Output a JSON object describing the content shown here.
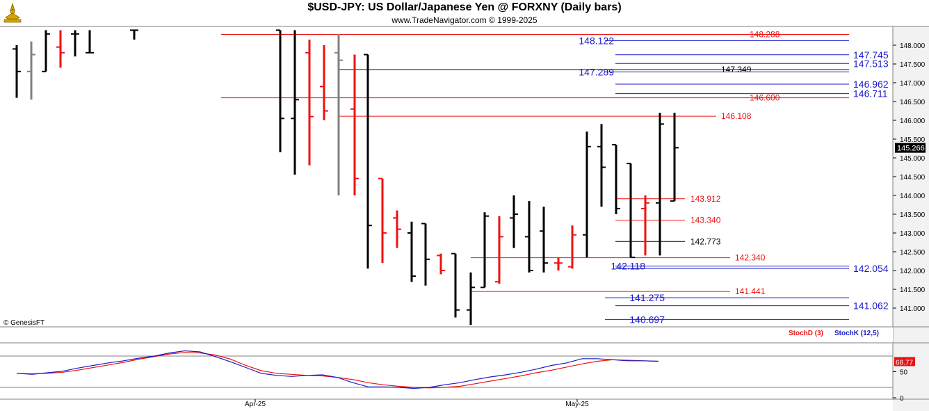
{
  "header": {
    "title": "$USD-JPY:  US Dollar/Japanese Yen @ FORXNY  (Daily bars)",
    "subtitle": "www.TradeNavigator.com © 1999-2025",
    "logo_icon": "genesis-compass-logo-icon"
  },
  "watermark": "© GenesisFT",
  "colors": {
    "up_bar": "#000000",
    "down_bar": "#ee1111",
    "neutral_bar": "#808080",
    "blue_level": "#1a1acc",
    "red_level": "#ee1111",
    "black_level": "#000000",
    "grid": "#c8c8c8",
    "axis_bg": "#f2f2f2"
  },
  "chart_data": [
    {
      "type": "ohlc",
      "name": "price",
      "ylim": [
        140.5,
        148.5
      ],
      "yticks": [
        "148.000",
        "147.500",
        "147.000",
        "146.500",
        "146.000",
        "145.500",
        "145.000",
        "144.500",
        "144.000",
        "143.500",
        "143.000",
        "142.500",
        "142.000",
        "141.500",
        "141.000"
      ],
      "last_price": "145.266",
      "bars": [
        {
          "o": 147.9,
          "h": 148.0,
          "l": 146.6,
          "c": 147.3,
          "color": "black"
        },
        {
          "o": 147.3,
          "h": 148.1,
          "l": 146.55,
          "c": 147.75,
          "color": "gray"
        },
        {
          "o": 147.3,
          "h": 148.4,
          "l": 147.3,
          "c": 148.3,
          "color": "black"
        },
        {
          "o": 147.95,
          "h": 148.4,
          "l": 147.4,
          "c": 147.8,
          "color": "red"
        },
        {
          "o": 148.3,
          "h": 148.4,
          "l": 147.7,
          "c": 148.3,
          "color": "black"
        },
        {
          "o": 147.8,
          "h": 148.4,
          "l": 147.8,
          "c": 147.8,
          "color": "black"
        },
        {
          "o": 148.4,
          "h": 148.4,
          "l": 148.15,
          "c": 148.4,
          "color": "black"
        },
        {
          "o": 148.4,
          "h": 148.4,
          "l": 145.15,
          "c": 146.05,
          "color": "black"
        },
        {
          "o": 146.05,
          "h": 148.4,
          "l": 144.55,
          "c": 146.55,
          "color": "black"
        },
        {
          "o": 147.8,
          "h": 148.15,
          "l": 144.8,
          "c": 146.1,
          "color": "red"
        },
        {
          "o": 146.9,
          "h": 148.0,
          "l": 146.0,
          "c": 146.25,
          "color": "red"
        },
        {
          "o": 147.8,
          "h": 148.3,
          "l": 144.0,
          "c": 147.6,
          "color": "gray"
        },
        {
          "o": 146.3,
          "h": 147.75,
          "l": 144.0,
          "c": 144.45,
          "color": "red"
        },
        {
          "o": 147.75,
          "h": 147.75,
          "l": 142.05,
          "c": 143.2,
          "color": "black"
        },
        {
          "o": 144.45,
          "h": 144.45,
          "l": 142.2,
          "c": 143.0,
          "color": "red"
        },
        {
          "o": 143.4,
          "h": 143.6,
          "l": 142.6,
          "c": 143.1,
          "color": "red"
        },
        {
          "o": 143.0,
          "h": 143.3,
          "l": 141.7,
          "c": 141.85,
          "color": "black"
        },
        {
          "o": 143.25,
          "h": 143.25,
          "l": 141.6,
          "c": 142.3,
          "color": "black"
        },
        {
          "o": 142.4,
          "h": 142.45,
          "l": 141.9,
          "c": 142.0,
          "color": "red"
        },
        {
          "o": 142.45,
          "h": 142.45,
          "l": 140.75,
          "c": 140.95,
          "color": "black"
        },
        {
          "o": 140.95,
          "h": 141.95,
          "l": 140.55,
          "c": 141.55,
          "color": "black"
        },
        {
          "o": 141.55,
          "h": 143.55,
          "l": 141.55,
          "c": 143.45,
          "color": "black"
        },
        {
          "o": 141.7,
          "h": 143.45,
          "l": 141.65,
          "c": 142.9,
          "color": "red"
        },
        {
          "o": 143.4,
          "h": 144.0,
          "l": 142.6,
          "c": 143.5,
          "color": "black"
        },
        {
          "o": 142.9,
          "h": 143.85,
          "l": 141.95,
          "c": 142.0,
          "color": "black"
        },
        {
          "o": 143.05,
          "h": 143.7,
          "l": 141.95,
          "c": 142.2,
          "color": "black"
        },
        {
          "o": 142.2,
          "h": 142.35,
          "l": 142.0,
          "c": 142.2,
          "color": "red"
        },
        {
          "o": 142.1,
          "h": 143.2,
          "l": 142.05,
          "c": 142.95,
          "color": "red"
        },
        {
          "o": 142.95,
          "h": 145.7,
          "l": 142.35,
          "c": 145.3,
          "color": "black"
        },
        {
          "o": 145.3,
          "h": 145.9,
          "l": 143.7,
          "c": 144.75,
          "color": "black"
        },
        {
          "o": 145.35,
          "h": 145.35,
          "l": 143.5,
          "c": 143.65,
          "color": "black"
        },
        {
          "o": 144.85,
          "h": 144.85,
          "l": 142.35,
          "c": 142.35,
          "color": "black"
        },
        {
          "o": 143.65,
          "h": 144.0,
          "l": 142.4,
          "c": 143.8,
          "color": "red"
        },
        {
          "o": 143.8,
          "h": 146.2,
          "l": 142.4,
          "c": 145.9,
          "color": "black"
        },
        {
          "o": 143.85,
          "h": 146.2,
          "l": 143.85,
          "c": 145.27,
          "color": "black"
        }
      ],
      "levels": [
        {
          "value": "148.288",
          "color": "red",
          "label": "148.288"
        },
        {
          "value": "148.122",
          "color": "blue",
          "label": "148.122"
        },
        {
          "value": "147.745",
          "color": "blue",
          "label": "147.745"
        },
        {
          "value": "147.513",
          "color": "blue",
          "label": "147.513"
        },
        {
          "value": "147.349",
          "color": "black",
          "label": "147.349"
        },
        {
          "value": "147.289",
          "color": "blue",
          "label": "147.289"
        },
        {
          "value": "146.962",
          "color": "blue",
          "label": "146.962"
        },
        {
          "value": "146.711",
          "color": "blue",
          "label": "146.711"
        },
        {
          "value": "146.600",
          "color": "red",
          "label": "146.600"
        },
        {
          "value": "146.108",
          "color": "red",
          "label": "146.108"
        },
        {
          "value": "143.912",
          "color": "red",
          "label": "143.912"
        },
        {
          "value": "143.340",
          "color": "red",
          "label": "143.340"
        },
        {
          "value": "142.773",
          "color": "black",
          "label": "142.773"
        },
        {
          "value": "142.340",
          "color": "red",
          "label": "142.340"
        },
        {
          "value": "142.118",
          "color": "blue",
          "label": "142.118"
        },
        {
          "value": "142.054",
          "color": "blue",
          "label": "142.054"
        },
        {
          "value": "141.441",
          "color": "red",
          "label": "141.441"
        },
        {
          "value": "141.275",
          "color": "blue",
          "label": "141.275"
        },
        {
          "value": "141.062",
          "color": "blue",
          "label": "141.062"
        },
        {
          "value": "140.697",
          "color": "blue",
          "label": "140.697"
        }
      ]
    },
    {
      "type": "line",
      "name": "stochastic",
      "ylim": [
        0,
        100
      ],
      "yticks": [
        "50",
        "0"
      ],
      "current_value": "68.77",
      "series": [
        {
          "name": "StochD (3)",
          "color": "red",
          "values": [
            47,
            46,
            47,
            49,
            53,
            58,
            63,
            68,
            74,
            79,
            84,
            87,
            86,
            82,
            74,
            62,
            52,
            47,
            45,
            43,
            42,
            39,
            35,
            29,
            25,
            22,
            20,
            19,
            20,
            22,
            27,
            32,
            37,
            42,
            48,
            53,
            59,
            65,
            70,
            73,
            72,
            71,
            70
          ]
        },
        {
          "name": "StochK (12,5)",
          "color": "blue",
          "values": [
            47,
            45,
            48,
            51,
            57,
            62,
            67,
            71,
            76,
            80,
            86,
            90,
            88,
            79,
            69,
            58,
            47,
            43,
            41,
            43,
            44,
            39,
            29,
            21,
            21,
            20,
            18,
            20,
            25,
            29,
            35,
            40,
            44,
            49,
            55,
            62,
            67,
            75,
            75,
            73,
            71,
            71,
            70
          ]
        }
      ],
      "guides": [
        80,
        20
      ]
    }
  ],
  "x_axis": {
    "ticks": [
      "Apr-25",
      "May-25"
    ]
  }
}
